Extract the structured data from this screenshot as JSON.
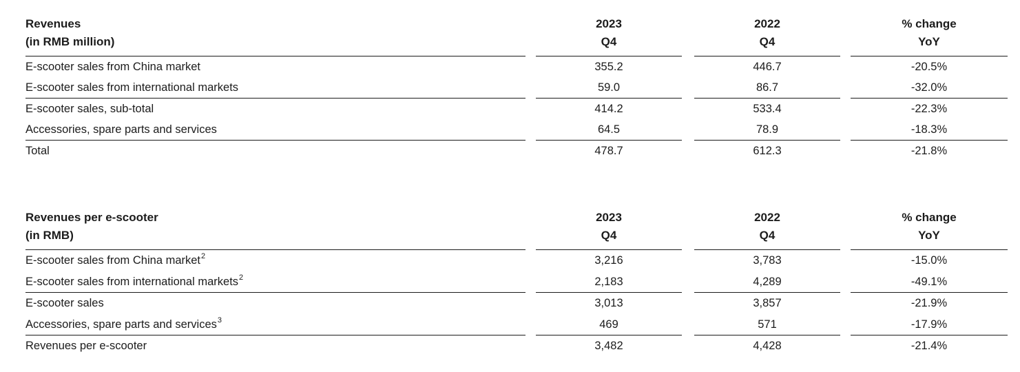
{
  "page": {
    "background": "#ffffff",
    "text_color": "#1c1c1c",
    "rule_color": "#1a1a1a"
  },
  "tables": [
    {
      "title_line1": "Revenues",
      "title_line2": "(in RMB million)",
      "columns": [
        {
          "line1": "2023",
          "line2": "Q4"
        },
        {
          "line1": "2022",
          "line2": "Q4"
        },
        {
          "line1": "% change",
          "line2": "YoY"
        }
      ],
      "rows": [
        {
          "label": "E-scooter sales from China market",
          "sup": "",
          "values": [
            "355.2",
            "446.7",
            "-20.5%"
          ]
        },
        {
          "label": "E-scooter sales from international markets",
          "sup": "",
          "values": [
            "59.0",
            "86.7",
            "-32.0%"
          ]
        },
        {
          "label": "E-scooter sales, sub-total",
          "sup": "",
          "values": [
            "414.2",
            "533.4",
            "-22.3%"
          ]
        },
        {
          "label": "Accessories, spare parts and services",
          "sup": "",
          "values": [
            "64.5",
            "78.9",
            "-18.3%"
          ]
        },
        {
          "label": "Total",
          "sup": "",
          "values": [
            "478.7",
            "612.3",
            "-21.8%"
          ]
        }
      ]
    },
    {
      "title_line1": "Revenues per e-scooter",
      "title_line2": "(in RMB)",
      "columns": [
        {
          "line1": "2023",
          "line2": "Q4"
        },
        {
          "line1": "2022",
          "line2": "Q4"
        },
        {
          "line1": "% change",
          "line2": "YoY"
        }
      ],
      "rows": [
        {
          "label": "E-scooter sales from China market",
          "sup": "2",
          "values": [
            "3,216",
            "3,783",
            "-15.0%"
          ]
        },
        {
          "label": "E-scooter sales from international markets",
          "sup": "2",
          "values": [
            "2,183",
            "4,289",
            "-49.1%"
          ]
        },
        {
          "label": "E-scooter sales",
          "sup": "",
          "values": [
            "3,013",
            "3,857",
            "-21.9%"
          ]
        },
        {
          "label": "Accessories, spare parts and services",
          "sup": "3",
          "values": [
            "469",
            "571",
            "-17.9%"
          ]
        },
        {
          "label": "Revenues per e-scooter",
          "sup": "",
          "values": [
            "3,482",
            "4,428",
            "-21.4%"
          ]
        }
      ]
    }
  ]
}
